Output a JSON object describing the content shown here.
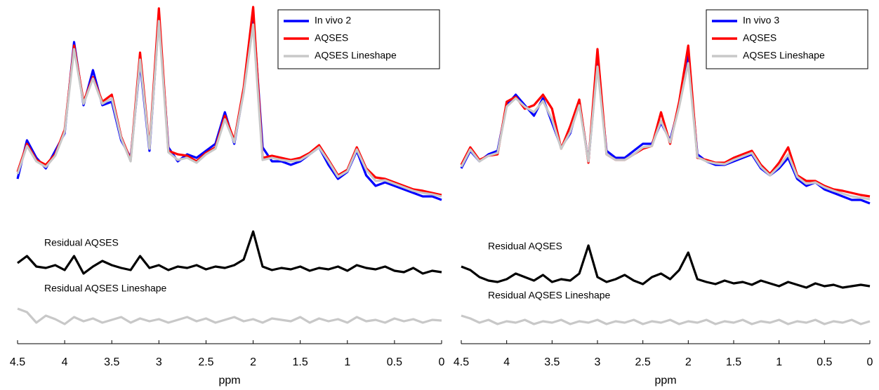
{
  "chart_data": [
    {
      "type": "line",
      "xlabel": "ppm",
      "legend": "upper right",
      "x": [
        4.5,
        4.4,
        4.3,
        4.2,
        4.1,
        4.0,
        3.9,
        3.8,
        3.7,
        3.6,
        3.5,
        3.4,
        3.3,
        3.2,
        3.1,
        3.0,
        2.9,
        2.8,
        2.7,
        2.6,
        2.5,
        2.4,
        2.3,
        2.2,
        2.1,
        2.0,
        1.9,
        1.8,
        1.7,
        1.6,
        1.5,
        1.4,
        1.3,
        1.2,
        1.1,
        1.0,
        0.9,
        0.8,
        0.7,
        0.6,
        0.5,
        0.4,
        0.3,
        0.2,
        0.1,
        0.0
      ],
      "xlim": [
        4.5,
        0
      ],
      "xticks": [
        4.5,
        4,
        3.5,
        3,
        2.5,
        2,
        1.5,
        1,
        0.5,
        0
      ],
      "ylim": [
        0,
        480
      ],
      "series": [
        {
          "name": "In vivo 2",
          "color": "#0000ff",
          "values": [
            235,
            290,
            265,
            250,
            275,
            300,
            430,
            340,
            390,
            340,
            345,
            290,
            265,
            400,
            275,
            465,
            280,
            260,
            270,
            265,
            275,
            285,
            330,
            285,
            360,
            470,
            280,
            260,
            260,
            255,
            260,
            270,
            280,
            255,
            235,
            245,
            275,
            240,
            225,
            230,
            225,
            220,
            215,
            210,
            210,
            205
          ]
        },
        {
          "name": "AQSES",
          "color": "#ff0000",
          "values": [
            245,
            285,
            262,
            255,
            270,
            305,
            425,
            345,
            380,
            345,
            355,
            295,
            262,
            415,
            280,
            478,
            275,
            270,
            268,
            260,
            272,
            280,
            325,
            290,
            365,
            480,
            265,
            268,
            265,
            262,
            265,
            272,
            283,
            262,
            240,
            248,
            280,
            250,
            237,
            235,
            230,
            225,
            220,
            218,
            215,
            212
          ]
        },
        {
          "name": "AQSES Lineshape",
          "color": "#c8c8c8",
          "values": [
            242,
            282,
            260,
            252,
            268,
            302,
            420,
            342,
            378,
            342,
            350,
            293,
            260,
            405,
            278,
            460,
            273,
            262,
            265,
            258,
            270,
            278,
            320,
            287,
            358,
            455,
            262,
            265,
            262,
            260,
            262,
            270,
            280,
            260,
            238,
            246,
            277,
            248,
            232,
            233,
            228,
            223,
            218,
            215,
            213,
            210
          ]
        }
      ],
      "residuals": [
        {
          "name": "Residual AQSES",
          "color": "#000000",
          "values": [
            115,
            125,
            110,
            108,
            112,
            105,
            125,
            100,
            110,
            118,
            112,
            108,
            105,
            125,
            108,
            112,
            105,
            110,
            108,
            112,
            106,
            110,
            108,
            112,
            120,
            160,
            110,
            105,
            108,
            106,
            110,
            104,
            108,
            106,
            110,
            104,
            112,
            108,
            106,
            110,
            104,
            102,
            108,
            100,
            104,
            102
          ]
        },
        {
          "name": "Residual AQSES Lineshape",
          "color": "#c8c8c8",
          "values": [
            50,
            45,
            30,
            40,
            35,
            28,
            38,
            32,
            36,
            30,
            34,
            38,
            30,
            36,
            32,
            35,
            30,
            34,
            38,
            32,
            36,
            30,
            34,
            38,
            32,
            35,
            30,
            36,
            34,
            32,
            38,
            30,
            36,
            32,
            35,
            30,
            38,
            32,
            34,
            30,
            36,
            32,
            35,
            30,
            34,
            33
          ]
        }
      ]
    },
    {
      "type": "line",
      "xlabel": "ppm",
      "legend": "upper right",
      "x": [
        4.5,
        4.4,
        4.3,
        4.2,
        4.1,
        4.0,
        3.9,
        3.8,
        3.7,
        3.6,
        3.5,
        3.4,
        3.3,
        3.2,
        3.1,
        3.0,
        2.9,
        2.8,
        2.7,
        2.6,
        2.5,
        2.4,
        2.3,
        2.2,
        2.1,
        2.0,
        1.9,
        1.8,
        1.7,
        1.6,
        1.5,
        1.4,
        1.3,
        1.2,
        1.1,
        1.0,
        0.9,
        0.8,
        0.7,
        0.6,
        0.5,
        0.4,
        0.3,
        0.2,
        0.1,
        0.0
      ],
      "xlim": [
        4.5,
        0
      ],
      "xticks": [
        4.5,
        4,
        3.5,
        3,
        2.5,
        2,
        1.5,
        1,
        0.5,
        0
      ],
      "ylim": [
        0,
        480
      ],
      "series": [
        {
          "name": "In vivo 3",
          "color": "#0000ff",
          "values": [
            250,
            275,
            260,
            270,
            275,
            340,
            355,
            340,
            325,
            350,
            315,
            280,
            300,
            345,
            260,
            400,
            275,
            265,
            265,
            275,
            285,
            285,
            315,
            290,
            340,
            410,
            270,
            260,
            255,
            255,
            260,
            265,
            270,
            250,
            240,
            250,
            265,
            235,
            225,
            230,
            220,
            215,
            210,
            205,
            205,
            200
          ]
        },
        {
          "name": "AQSES",
          "color": "#ff0000",
          "values": [
            255,
            280,
            262,
            268,
            270,
            345,
            352,
            335,
            340,
            355,
            335,
            278,
            310,
            348,
            258,
            420,
            270,
            262,
            262,
            270,
            278,
            282,
            330,
            285,
            345,
            425,
            265,
            262,
            258,
            258,
            265,
            270,
            275,
            255,
            242,
            258,
            280,
            240,
            232,
            232,
            225,
            220,
            218,
            215,
            212,
            210
          ]
        },
        {
          "name": "AQSES Lineshape",
          "color": "#c8c8c8",
          "values": [
            252,
            277,
            260,
            268,
            272,
            338,
            350,
            338,
            330,
            346,
            320,
            278,
            302,
            340,
            260,
            395,
            270,
            262,
            262,
            270,
            280,
            282,
            318,
            287,
            338,
            400,
            266,
            260,
            257,
            256,
            262,
            267,
            272,
            252,
            240,
            253,
            270,
            238,
            228,
            230,
            223,
            218,
            214,
            210,
            208,
            206
          ]
        }
      ],
      "residuals": [
        {
          "name": "Residual AQSES",
          "color": "#000000",
          "values": [
            110,
            105,
            95,
            90,
            88,
            92,
            100,
            95,
            90,
            98,
            88,
            92,
            90,
            100,
            140,
            95,
            88,
            92,
            98,
            90,
            85,
            95,
            100,
            92,
            105,
            130,
            92,
            88,
            85,
            90,
            86,
            88,
            84,
            90,
            86,
            82,
            88,
            84,
            80,
            86,
            82,
            84,
            80,
            82,
            84,
            82
          ]
        },
        {
          "name": "Residual AQSES Lineshape",
          "color": "#c8c8c8",
          "values": [
            40,
            36,
            30,
            34,
            28,
            32,
            30,
            34,
            28,
            32,
            30,
            34,
            28,
            32,
            30,
            34,
            28,
            32,
            30,
            34,
            28,
            32,
            30,
            34,
            28,
            32,
            30,
            34,
            28,
            32,
            30,
            34,
            28,
            32,
            30,
            34,
            28,
            32,
            30,
            34,
            28,
            32,
            30,
            34,
            28,
            32
          ]
        }
      ]
    }
  ]
}
